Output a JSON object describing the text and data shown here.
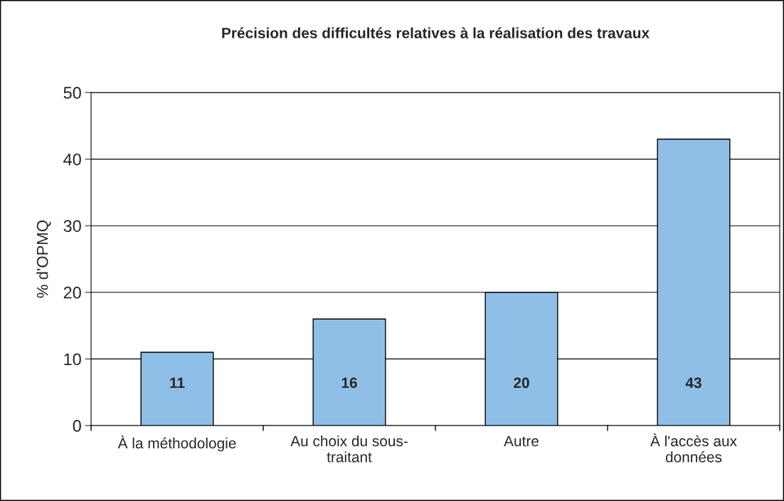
{
  "chart_data": {
    "type": "bar",
    "title": "Précision des difficultés relatives à la réalisation des travaux",
    "ylabel": "% d'OPMQ",
    "categories": [
      "À la méthodologie",
      "Au choix du sous-traitant",
      "Autre",
      "À l'accès aux données"
    ],
    "values": [
      11,
      16,
      20,
      43
    ],
    "color": "#8fbfe6",
    "ylim": [
      0,
      50
    ],
    "yticks": [
      0,
      10,
      20,
      30,
      40,
      50
    ],
    "grid": "y",
    "data_labels": true
  }
}
